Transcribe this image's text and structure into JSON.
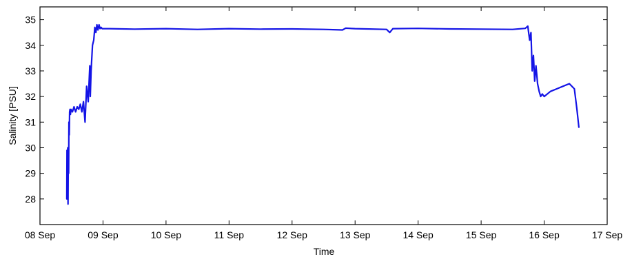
{
  "chart_data": {
    "type": "line",
    "title": "",
    "xlabel": "Time",
    "ylabel": "Salinity [PSU]",
    "xlim": [
      "08 Sep",
      "17 Sep"
    ],
    "ylim": [
      27,
      35.5
    ],
    "x_ticks": [
      "08 Sep",
      "09 Sep",
      "10 Sep",
      "11 Sep",
      "12 Sep",
      "13 Sep",
      "14 Sep",
      "15 Sep",
      "16 Sep",
      "17 Sep"
    ],
    "y_ticks": [
      "28",
      "29",
      "30",
      "31",
      "32",
      "33",
      "34",
      "35"
    ],
    "grid": false,
    "line_color": "#1414e6",
    "series": [
      {
        "x": [
          "08 Sep 10:12",
          "08 Sep 10:17",
          "08 Sep 10:22",
          "08 Sep 10:34",
          "08 Sep 10:41",
          "08 Sep 10:48",
          "08 Sep 10:55",
          "08 Sep 11:02",
          "08 Sep 11:10",
          "08 Sep 11:17",
          "08 Sep 11:26",
          "08 Sep 11:36",
          "08 Sep 11:48",
          "08 Sep 12:22",
          "08 Sep 12:58",
          "08 Sep 13:34",
          "08 Sep 14:10",
          "08 Sep 14:46",
          "08 Sep 15:22",
          "08 Sep 15:58",
          "08 Sep 16:34",
          "08 Sep 17:10",
          "08 Sep 17:46",
          "08 Sep 18:22",
          "08 Sep 18:58",
          "08 Sep 19:10",
          "08 Sep 19:29",
          "08 Sep 20:00",
          "08 Sep 20:29",
          "08 Sep 20:53",
          "08 Sep 21:17",
          "08 Sep 21:41",
          "08 Sep 22:05",
          "08 Sep 22:29",
          "08 Sep 22:53",
          "08 Sep 23:17",
          "08 Sep 23:41",
          "09 Sep 00:05",
          "09 Sep 00:41",
          "09 Sep 02:24",
          "09 Sep 12:00",
          "10 Sep 00:00",
          "10 Sep 12:00",
          "11 Sep 00:00",
          "11 Sep 12:00",
          "12 Sep 00:00",
          "12 Sep 12:00",
          "12 Sep 19:12",
          "12 Sep 20:24",
          "13 Sep 00:00",
          "13 Sep 12:00",
          "13 Sep 13:12",
          "13 Sep 14:24",
          "14 Sep 00:00",
          "14 Sep 12:00",
          "15 Sep 00:00",
          "15 Sep 12:00",
          "15 Sep 16:48",
          "15 Sep 17:46",
          "15 Sep 18:29",
          "15 Sep 18:58",
          "15 Sep 19:26",
          "15 Sep 19:55",
          "15 Sep 20:24",
          "15 Sep 20:53",
          "15 Sep 21:29",
          "15 Sep 22:05",
          "15 Sep 22:41",
          "15 Sep 23:17",
          "16 Sep 00:00",
          "16 Sep 02:24",
          "16 Sep 04:48",
          "16 Sep 07:12",
          "16 Sep 09:36",
          "16 Sep 11:31",
          "16 Sep 12:29",
          "16 Sep 13:12"
        ],
        "values": [
          28.0,
          29.9,
          28.6,
          30.0,
          27.8,
          30.0,
          29.0,
          31.0,
          30.5,
          31.4,
          31.5,
          31.3,
          31.5,
          31.4,
          31.6,
          31.4,
          31.6,
          31.5,
          31.7,
          31.4,
          31.8,
          31.0,
          32.4,
          31.8,
          33.2,
          32.0,
          33.0,
          34.0,
          34.2,
          34.7,
          34.5,
          34.8,
          34.6,
          34.8,
          34.65,
          34.7,
          34.65,
          34.65,
          34.65,
          34.65,
          34.63,
          34.65,
          34.62,
          34.65,
          34.63,
          34.64,
          34.62,
          34.6,
          34.67,
          34.65,
          34.62,
          34.5,
          34.65,
          34.66,
          34.64,
          34.63,
          34.62,
          34.66,
          34.75,
          34.2,
          34.5,
          33.0,
          33.6,
          32.6,
          33.2,
          32.5,
          32.2,
          32.0,
          32.1,
          32.0,
          32.2,
          32.3,
          32.4,
          32.5,
          32.3,
          31.5,
          30.8
        ]
      }
    ]
  }
}
